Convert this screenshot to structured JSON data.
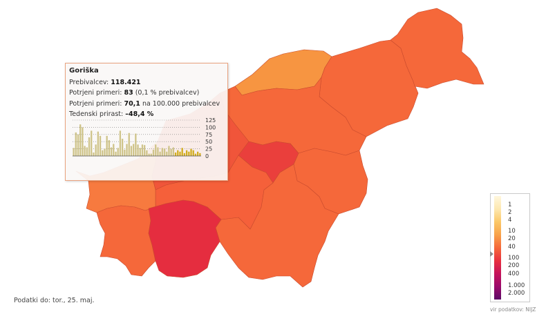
{
  "map_data": {
    "country": "Slovenia",
    "regions": [
      {
        "id": "pomurska",
        "color": "#f5683a"
      },
      {
        "id": "podravska",
        "color": "#f5683a"
      },
      {
        "id": "koroska",
        "color": "#f79541"
      },
      {
        "id": "savinjska",
        "color": "#f5683a"
      },
      {
        "id": "zasavska",
        "color": "#ea3f3c"
      },
      {
        "id": "posavska",
        "color": "#f5683a"
      },
      {
        "id": "jugovzhodna-slovenija",
        "color": "#f5683a"
      },
      {
        "id": "osrednjeslovenska",
        "color": "#f5603a"
      },
      {
        "id": "gorenjska",
        "color": "#f0553a"
      },
      {
        "id": "goriska",
        "color": "#f77a3f"
      },
      {
        "id": "obalno-kraska",
        "color": "#f5683a"
      },
      {
        "id": "primorsko-notranjska",
        "color": "#e52d3f"
      }
    ]
  },
  "tooltip": {
    "region": "Goriška",
    "population_label": "Prebivalcev:",
    "population_value": "118.421",
    "confirmed_label": "Potrjeni primeri:",
    "confirmed_value": "83",
    "confirmed_note": "(0,1 % prebivalcev)",
    "per100k_label": "Potrjeni primeri:",
    "per100k_value": "70,1",
    "per100k_note": "na 100.000 prebivalcev",
    "weekly_label": "Tedenski prirast:",
    "weekly_value": "–48,4 %",
    "chart": {
      "type": "bar",
      "y_ticks": [
        "125",
        "100",
        "75",
        "50",
        "25",
        "0"
      ],
      "ylim": [
        0,
        125
      ],
      "values": [
        28,
        82,
        75,
        110,
        100,
        35,
        30,
        65,
        88,
        12,
        40,
        85,
        70,
        20,
        25,
        70,
        55,
        30,
        42,
        15,
        28,
        88,
        60,
        22,
        42,
        80,
        35,
        42,
        78,
        40,
        28,
        40,
        38,
        20,
        8,
        8,
        22,
        40,
        30,
        15,
        28,
        26,
        15,
        35,
        25,
        30,
        12,
        20,
        15,
        28,
        10,
        20,
        15,
        25,
        20,
        8,
        15,
        10
      ],
      "highlight_last": 12,
      "bar_color": "#cfc48a",
      "highlight_color": "#d2ad20"
    }
  },
  "legend": {
    "labels": [
      "1",
      "2",
      "4",
      "10",
      "20",
      "40",
      "100",
      "200",
      "400",
      "1.000",
      "2.000"
    ],
    "colors": [
      "#fff7dd",
      "#fde8b0",
      "#fbc868",
      "#f8a24a",
      "#f5683a",
      "#e8303f",
      "#c4135a",
      "#9a0a6a",
      "#5c0a66"
    ],
    "source": "vir podatkov: NIJZ"
  },
  "data_date": "Podatki do: tor., 25. maj."
}
